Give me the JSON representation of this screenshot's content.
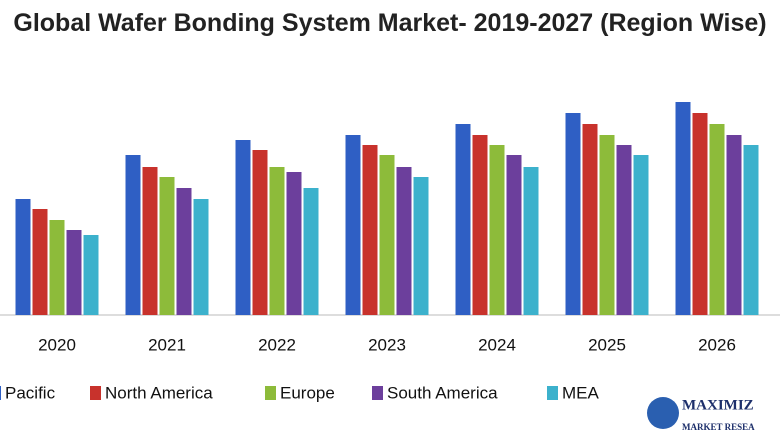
{
  "chart_data": {
    "type": "bar",
    "title": "Global Wafer Bonding System Market- 2019-2027 (Region Wise)",
    "categories": [
      "2020",
      "2021",
      "2022",
      "2023",
      "2024",
      "2025",
      "2026"
    ],
    "series": [
      {
        "name": "Pacific",
        "color": "#2f5fc4",
        "values": [
          116,
          160,
          175,
          180,
          191,
          202,
          213
        ]
      },
      {
        "name": "North America",
        "color": "#c8322c",
        "values": [
          106,
          148,
          165,
          170,
          180,
          191,
          202
        ]
      },
      {
        "name": "Europe",
        "color": "#8dbb3a",
        "values": [
          95,
          138,
          148,
          160,
          170,
          180,
          191
        ]
      },
      {
        "name": "South America",
        "color": "#6c3f9c",
        "values": [
          85,
          127,
          143,
          148,
          160,
          170,
          180
        ]
      },
      {
        "name": "MEA",
        "color": "#3cb1cc",
        "values": [
          80,
          116,
          127,
          138,
          148,
          160,
          170
        ]
      }
    ],
    "ylim": [
      0,
      220
    ]
  },
  "logo": {
    "line1": "MAXIMIZ",
    "line2": "MARKET RESEA"
  }
}
